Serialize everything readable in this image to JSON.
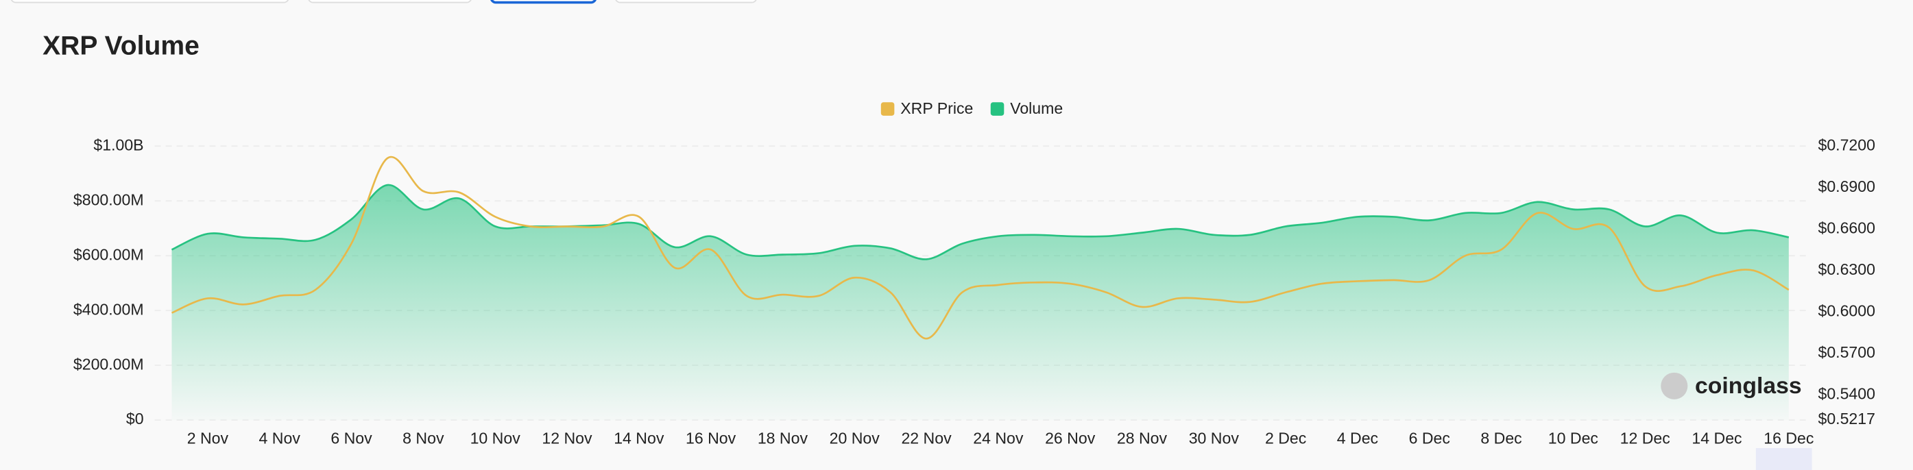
{
  "chart_data": {
    "type": "line",
    "title": "XRP Volume",
    "watermark": "coinglass",
    "categories": [
      null,
      "2 Nov",
      null,
      "4 Nov",
      null,
      "6 Nov",
      null,
      "8 Nov",
      null,
      "10 Nov",
      null,
      "12 Nov",
      null,
      "14 Nov",
      null,
      "16 Nov",
      null,
      "18 Nov",
      null,
      "20 Nov",
      null,
      "22 Nov",
      null,
      "24 Nov",
      null,
      "26 Nov",
      null,
      "28 Nov",
      null,
      "30 Nov",
      null,
      "2 Dec",
      null,
      "4 Dec",
      null,
      "6 Dec",
      null,
      "8 Dec",
      null,
      "10 Dec",
      null,
      "12 Dec",
      null,
      "14 Dec",
      null,
      "16 Dec"
    ],
    "series": [
      {
        "name": "XRP Price",
        "color": "#e8b84a",
        "axis": "y2",
        "values": [
          0.5993,
          0.6098,
          0.6054,
          0.6116,
          0.616,
          0.6495,
          0.7112,
          0.6874,
          0.6865,
          0.6689,
          0.6618,
          0.6618,
          0.6618,
          0.6689,
          0.6319,
          0.6451,
          0.6116,
          0.6125,
          0.6116,
          0.6248,
          0.6142,
          0.5807,
          0.6142,
          0.6195,
          0.6213,
          0.6204,
          0.6142,
          0.6036,
          0.6098,
          0.6089,
          0.6072,
          0.6142,
          0.6204,
          0.6222,
          0.623,
          0.623,
          0.6407,
          0.6451,
          0.6715,
          0.6601,
          0.661,
          0.6186,
          0.6186,
          0.6266,
          0.6301,
          0.616
        ]
      },
      {
        "name": "Volume",
        "color": "#26c281",
        "values": [
          622000000,
          680000000,
          667000000,
          662000000,
          658000000,
          733000000,
          858000000,
          769000000,
          809000000,
          707000000,
          707000000,
          707000000,
          711000000,
          716000000,
          631000000,
          671000000,
          604000000,
          604000000,
          609000000,
          636000000,
          627000000,
          587000000,
          644000000,
          671000000,
          676000000,
          671000000,
          671000000,
          684000000,
          698000000,
          676000000,
          676000000,
          707000000,
          720000000,
          742000000,
          742000000,
          729000000,
          756000000,
          756000000,
          796000000,
          769000000,
          769000000,
          707000000,
          747000000,
          684000000,
          693000000,
          667000000
        ]
      }
    ],
    "ylim": [
      0,
      1000000000
    ],
    "yticks": [
      {
        "value": 0,
        "label": "$0"
      },
      {
        "value": 200000000,
        "label": "$200.00M"
      },
      {
        "value": 400000000,
        "label": "$400.00M"
      },
      {
        "value": 600000000,
        "label": "$600.00M"
      },
      {
        "value": 800000000,
        "label": "$800.00M"
      },
      {
        "value": 1000000000,
        "label": "$1.00B"
      }
    ],
    "y2lim": [
      0.5217,
      0.72
    ],
    "y2ticks": [
      {
        "value": 0.5217,
        "label": "$0.5217"
      },
      {
        "value": 0.54,
        "label": "$0.5400"
      },
      {
        "value": 0.57,
        "label": "$0.5700"
      },
      {
        "value": 0.6,
        "label": "$0.6000"
      },
      {
        "value": 0.63,
        "label": "$0.6300"
      },
      {
        "value": 0.66,
        "label": "$0.6600"
      },
      {
        "value": 0.69,
        "label": "$0.6900"
      },
      {
        "value": 0.72,
        "label": "$0.7200"
      }
    ],
    "grid": true,
    "legend": "top"
  }
}
